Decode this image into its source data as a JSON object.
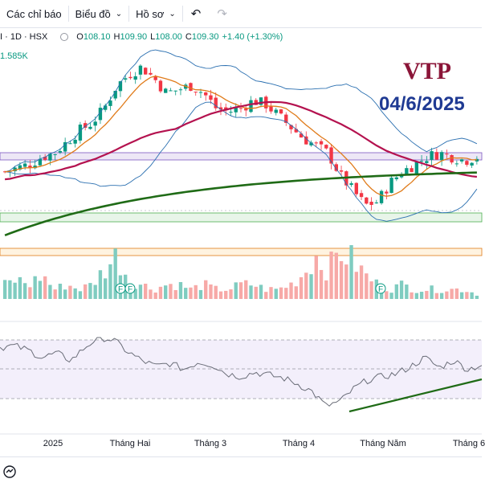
{
  "toolbar": {
    "indicators_label": "Các chỉ báo",
    "chart_type_label": "Biểu đồ",
    "profile_label": "Hồ sơ",
    "undo_icon": "undo-icon",
    "redo_icon": "redo-icon"
  },
  "legend": {
    "symbol_fragment": "I · 1D · HSX",
    "open_label": "O",
    "open_value": "108.10",
    "high_label": "H",
    "high_value": "109.90",
    "low_label": "L",
    "low_value": "108.00",
    "close_label": "C",
    "close_value": "109.30",
    "change": "+1.40 (+1.30%)",
    "volume_fragment": "1.585K"
  },
  "overlay": {
    "ticker": "VTP",
    "date": "04/6/2025"
  },
  "x_axis": {
    "labels": [
      "2025",
      "Tháng Hai",
      "Tháng 3",
      "Tháng 4",
      "Tháng Năm",
      "Tháng 6"
    ]
  },
  "markers": {
    "f_badge": "F"
  },
  "colors": {
    "up": "#089981",
    "down": "#f23645",
    "ma_short": "#e07b1a",
    "ma_mid": "#b4124f",
    "ma_long": "#1f6b16",
    "bollinger": "#2a6fb0",
    "ticker": "#8b1538",
    "date": "#1f3a93",
    "rsi_line": "#6a6d78",
    "rsi_band": "#7e57c2",
    "trendline": "#1f6b16"
  },
  "chart_data": {
    "type": "candlestick",
    "price_trend": [
      95,
      96,
      97,
      99,
      100,
      103,
      106,
      108,
      112,
      118,
      121,
      123,
      120,
      116,
      117,
      118,
      116,
      112,
      111,
      112,
      114,
      113,
      110,
      107,
      104,
      102,
      100,
      94,
      90,
      86,
      87,
      92,
      95,
      97,
      99,
      100,
      99,
      98,
      99
    ],
    "rsi_trend": [
      65,
      66,
      63,
      58,
      61,
      56,
      65,
      72,
      70,
      62,
      56,
      52,
      54,
      50,
      55,
      53,
      47,
      45,
      48,
      46,
      44,
      40,
      35,
      25,
      28,
      37,
      43,
      45,
      47,
      52,
      58,
      51,
      56,
      50,
      53
    ],
    "volume_trend": [
      3,
      4,
      3,
      5,
      2,
      3,
      2,
      3,
      6,
      9,
      4,
      3,
      2,
      3,
      3,
      2,
      3,
      2,
      2,
      3,
      3,
      2,
      2,
      3,
      5,
      9,
      6,
      10,
      8,
      5,
      3,
      2,
      3,
      2,
      2,
      2,
      2,
      2,
      1
    ]
  }
}
